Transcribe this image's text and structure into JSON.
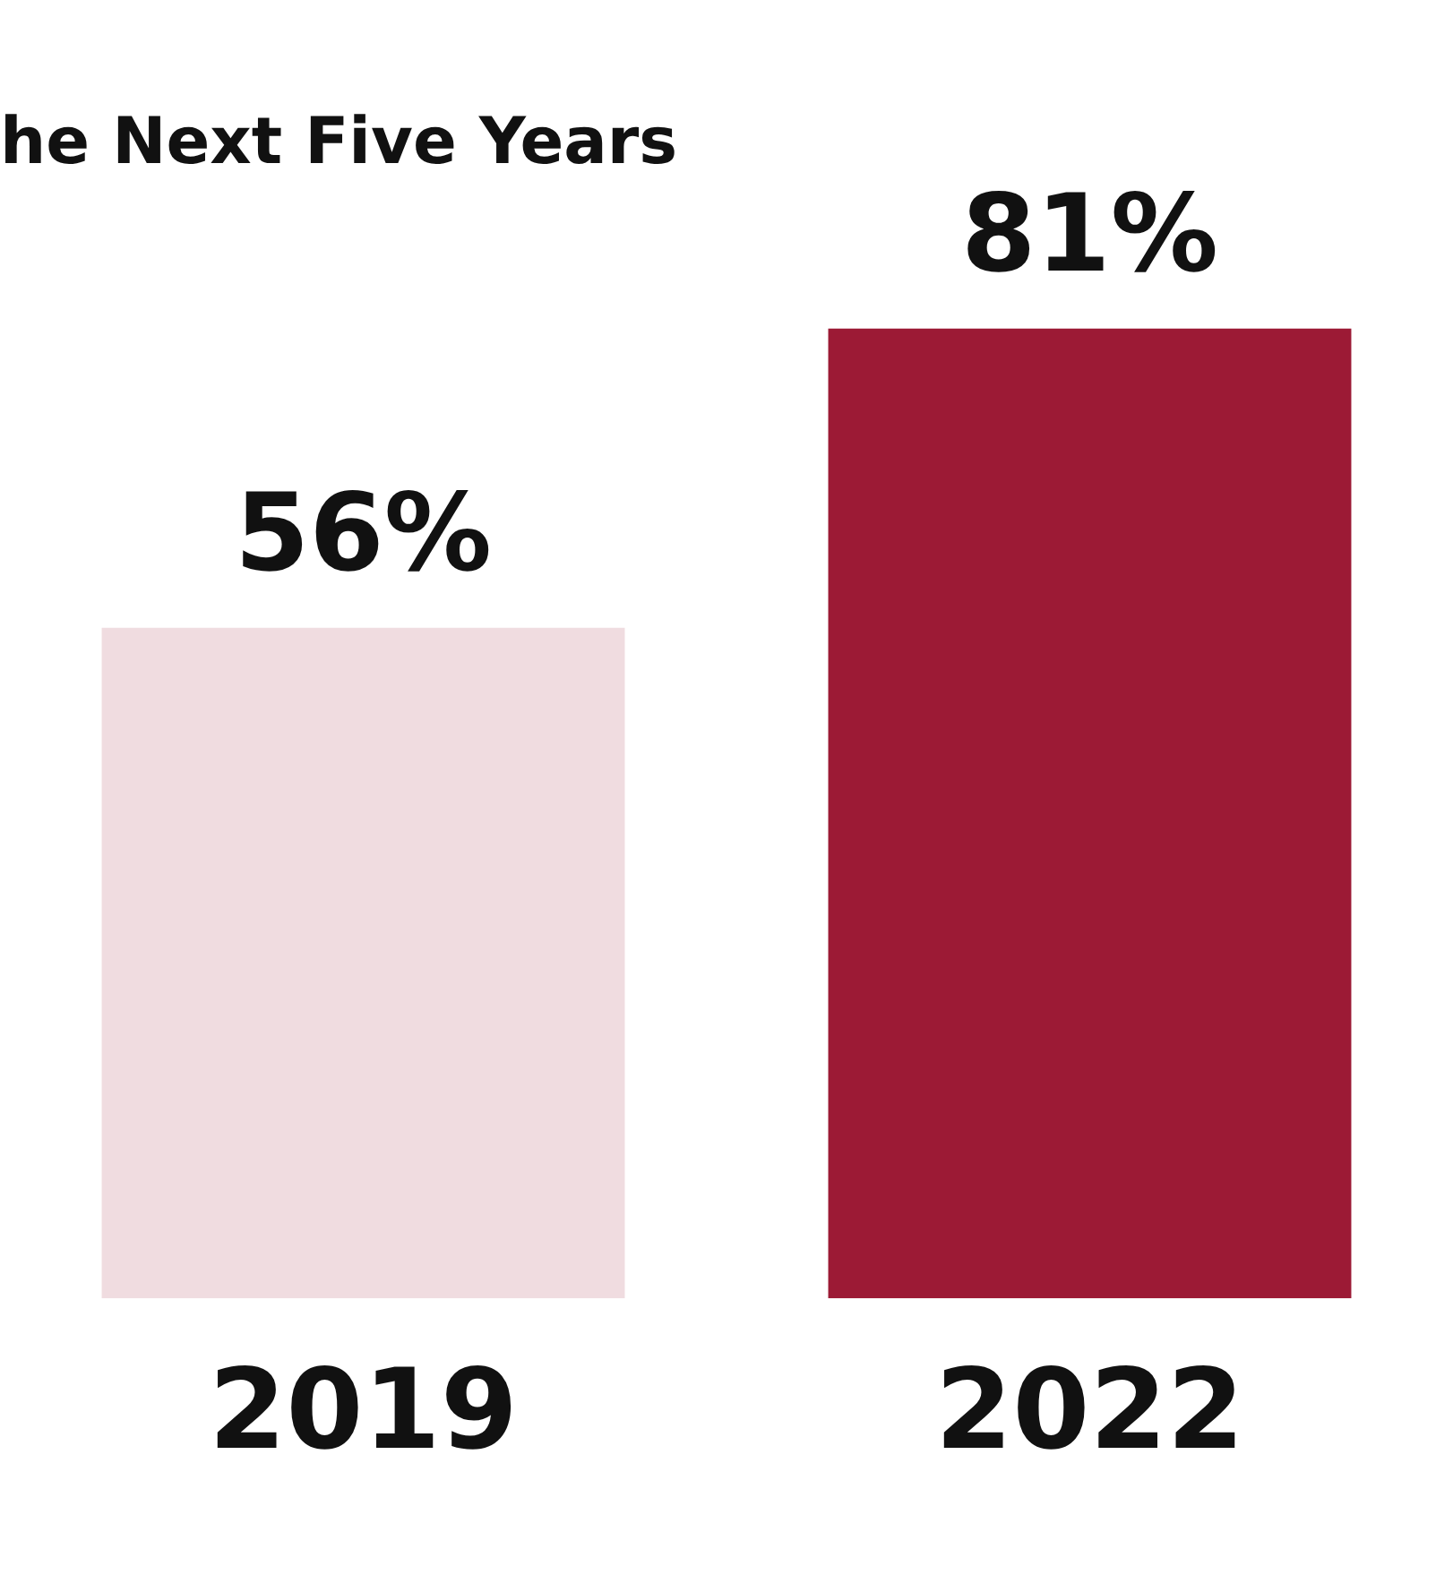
{
  "chart_data": {
    "type": "bar",
    "title": "he Next Five Years",
    "categories": [
      "2019",
      "2022"
    ],
    "values": [
      56,
      81
    ],
    "value_labels": [
      "56%",
      "81%"
    ],
    "colors": [
      "#f0dce0",
      "#9c1a35"
    ],
    "tick_labels": "x",
    "grid": false,
    "legend": false
  }
}
